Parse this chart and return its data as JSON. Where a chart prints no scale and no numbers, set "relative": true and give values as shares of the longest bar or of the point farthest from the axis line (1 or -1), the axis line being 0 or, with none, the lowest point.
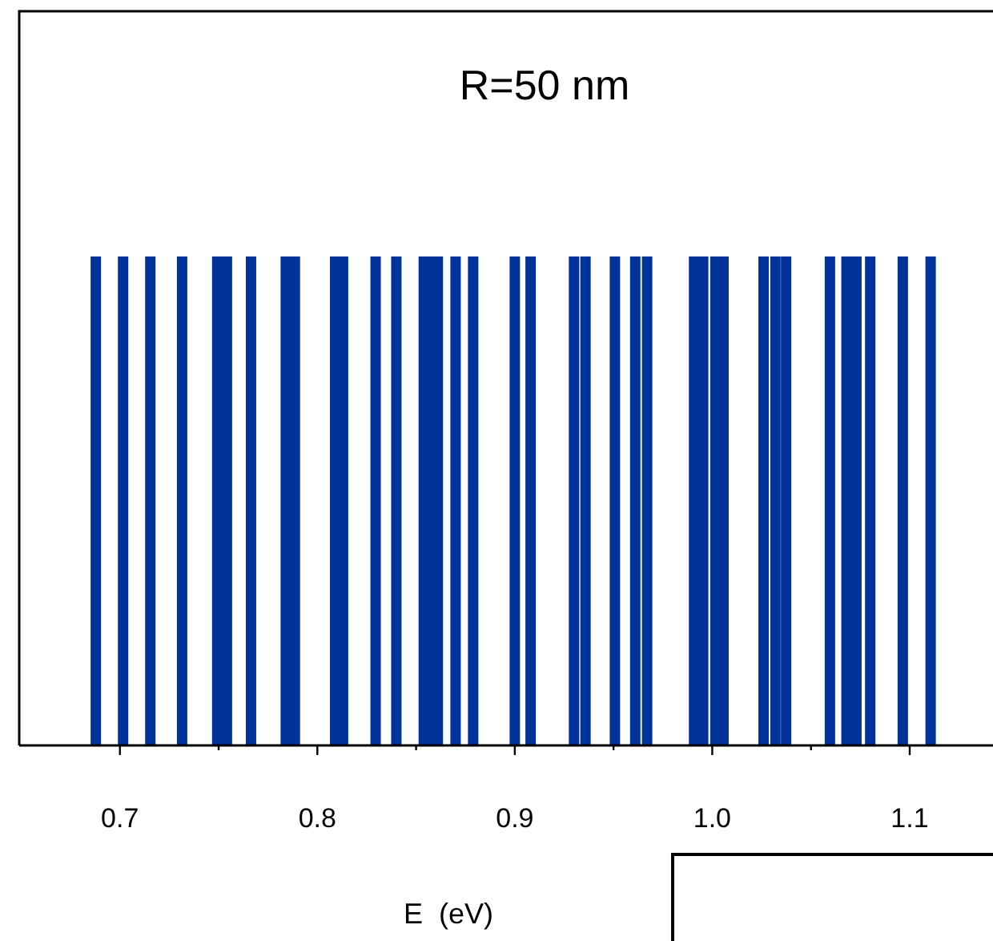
{
  "chart_data": {
    "type": "bar",
    "title": "R=50 nm",
    "xlabel": "E  (eV)",
    "relative": true,
    "color": "#003399",
    "x": [
      0.6878,
      0.7016,
      0.7154,
      0.7315,
      0.7493,
      0.7542,
      0.7664,
      0.784,
      0.7886,
      0.809,
      0.813,
      0.8295,
      0.84,
      0.8539,
      0.8577,
      0.861,
      0.87,
      0.8789,
      0.9,
      0.908,
      0.93,
      0.9358,
      0.9507,
      0.961,
      0.967,
      0.9908,
      0.9954,
      1.0016,
      1.0057,
      1.026,
      1.032,
      1.0374,
      1.0596,
      1.068,
      1.073,
      1.08,
      1.0965,
      1.1106
    ],
    "values": [
      1,
      1,
      1,
      1,
      1,
      1,
      1,
      1,
      1,
      1,
      1,
      1,
      1,
      1,
      1,
      1,
      1,
      1,
      1,
      1,
      1,
      1,
      1,
      1,
      1,
      1,
      1,
      1,
      1,
      1,
      1,
      1,
      1,
      1,
      1,
      1,
      1,
      1
    ],
    "xlim": [
      0.649,
      1.143
    ],
    "xticks": [
      0.7,
      {
        "value": 0.75,
        "label": null
      },
      {
        "value": 0.8,
        "label": "0.8"
      },
      {
        "value": 0.85,
        "label": null
      },
      0.9,
      {
        "value": 0.95,
        "label": null
      },
      {
        "value": 1.0,
        "label": "1.0"
      },
      {
        "value": 1.05,
        "label": null
      },
      1.1
    ],
    "grid": false
  }
}
